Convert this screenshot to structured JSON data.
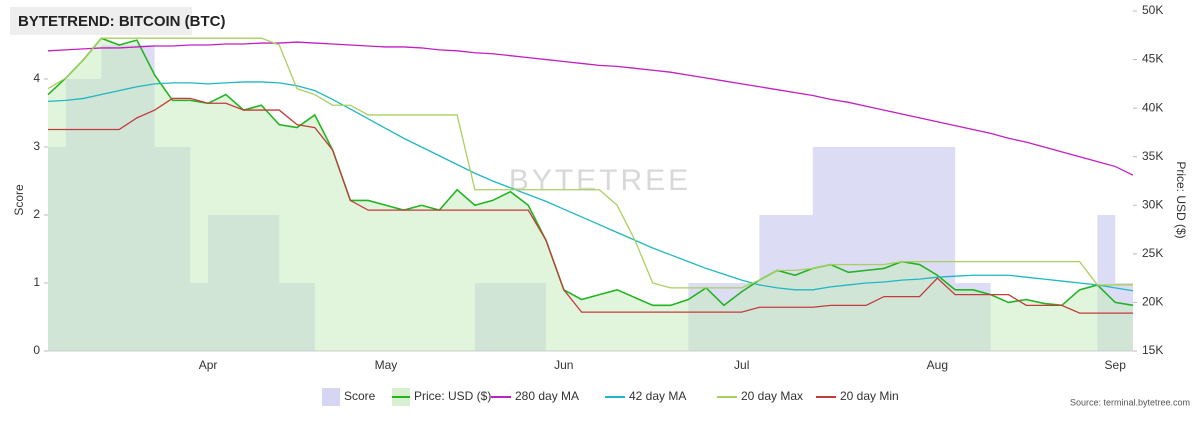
{
  "chart_data": {
    "type": "line",
    "title": "BYTETREND: BITCOIN (BTC)",
    "watermark": "BYTETREE",
    "source": "Source: terminal.bytetree.com",
    "ylabel": "Score",
    "y2label": "Price: USD ($)",
    "categories": [
      null,
      null,
      null,
      null,
      null,
      null,
      null,
      null,
      null,
      "Apr",
      null,
      null,
      null,
      null,
      null,
      null,
      null,
      null,
      null,
      "May",
      null,
      null,
      null,
      null,
      null,
      null,
      null,
      null,
      null,
      "Jun",
      null,
      null,
      null,
      null,
      null,
      null,
      null,
      null,
      null,
      "Jul",
      null,
      null,
      null,
      null,
      null,
      null,
      null,
      null,
      null,
      null,
      "Aug",
      null,
      null,
      null,
      null,
      null,
      null,
      null,
      null,
      null,
      "Sep",
      null
    ],
    "ylim": [
      0,
      5
    ],
    "yticks": [
      0,
      1,
      2,
      3,
      4
    ],
    "y2lim": [
      15000,
      50000
    ],
    "y2ticks": [
      {
        "value": 15000,
        "label": "15K"
      },
      {
        "value": 20000,
        "label": "20K"
      },
      {
        "value": 25000,
        "label": "25K"
      },
      {
        "value": 30000,
        "label": "30K"
      },
      {
        "value": 35000,
        "label": "35K"
      },
      {
        "value": 40000,
        "label": "40K"
      },
      {
        "value": 45000,
        "label": "45K"
      },
      {
        "value": 50000,
        "label": "50K"
      }
    ],
    "grid": false,
    "legend": "bottom",
    "series": [
      {
        "name": "Score",
        "color": "#d6d6f2",
        "axis": "y",
        "style": "area-step",
        "values": [
          3,
          4,
          4,
          4.5,
          4.5,
          4.5,
          3,
          3,
          1,
          2,
          2,
          2,
          2,
          1,
          1,
          0,
          0,
          0,
          0,
          0,
          0,
          0,
          0,
          0,
          1,
          1,
          1,
          1,
          0,
          0,
          0,
          0,
          0,
          0,
          0,
          0,
          1,
          1,
          1,
          1,
          2,
          2,
          2,
          3,
          3,
          3,
          3,
          3,
          3,
          3,
          3,
          1,
          1,
          0,
          0,
          0,
          0,
          0,
          0,
          2,
          1,
          1
        ]
      },
      {
        "name": "Price: USD ($)",
        "color": "#22b422",
        "axis": "y2",
        "style": "area-line",
        "values": [
          41400,
          43100,
          45000,
          47200,
          46500,
          47000,
          43400,
          40800,
          40800,
          40500,
          41400,
          39800,
          40300,
          38300,
          38000,
          39300,
          35700,
          30500,
          30500,
          30000,
          29500,
          30000,
          29500,
          31600,
          30000,
          30500,
          31400,
          30000,
          26400,
          21300,
          20300,
          20800,
          21300,
          20500,
          19700,
          19700,
          20300,
          21500,
          19700,
          21100,
          22300,
          23300,
          22800,
          23500,
          23900,
          23100,
          23300,
          23500,
          24200,
          23900,
          22800,
          21300,
          21300,
          20800,
          20000,
          20300,
          19900,
          19700,
          21300,
          21800,
          20000,
          19700
        ]
      },
      {
        "name": "280 day MA",
        "color": "#c21fc2",
        "axis": "y2",
        "style": "line",
        "values": [
          45900,
          46000,
          46100,
          46200,
          46200,
          46300,
          46400,
          46400,
          46500,
          46500,
          46600,
          46600,
          46700,
          46700,
          46800,
          46700,
          46600,
          46500,
          46400,
          46300,
          46300,
          46200,
          46000,
          45900,
          45700,
          45600,
          45400,
          45200,
          45000,
          44800,
          44600,
          44400,
          44300,
          44100,
          43900,
          43700,
          43400,
          43100,
          42800,
          42500,
          42200,
          41900,
          41600,
          41300,
          40900,
          40600,
          40200,
          39800,
          39400,
          39000,
          38600,
          38200,
          37800,
          37400,
          36900,
          36500,
          36000,
          35500,
          35000,
          34500,
          34000,
          33100
        ]
      },
      {
        "name": "42 day MA",
        "color": "#1fb8c0",
        "axis": "y2",
        "style": "line",
        "values": [
          40700,
          40800,
          41000,
          41400,
          41800,
          42200,
          42500,
          42600,
          42600,
          42500,
          42600,
          42700,
          42700,
          42600,
          42300,
          41800,
          40900,
          39900,
          38900,
          37900,
          36900,
          36000,
          35100,
          34200,
          33300,
          32500,
          31800,
          31100,
          30400,
          29600,
          28800,
          28000,
          27200,
          26400,
          25600,
          24900,
          24200,
          23500,
          22900,
          22300,
          21800,
          21500,
          21300,
          21300,
          21600,
          21800,
          22000,
          22100,
          22300,
          22400,
          22600,
          22700,
          22800,
          22800,
          22800,
          22600,
          22400,
          22200,
          22000,
          21800,
          21500,
          21200
        ]
      },
      {
        "name": "20 day Max",
        "color": "#a9d05e",
        "axis": "y2",
        "style": "line",
        "values": [
          42000,
          43100,
          45000,
          47200,
          47200,
          47200,
          47200,
          47200,
          47200,
          47200,
          47200,
          47200,
          47200,
          46500,
          42000,
          41400,
          40300,
          40300,
          39300,
          39300,
          39300,
          39300,
          39300,
          39300,
          31600,
          31600,
          31600,
          31600,
          31600,
          31600,
          31600,
          31600,
          30000,
          26400,
          22000,
          21500,
          21500,
          21500,
          21500,
          21500,
          22300,
          23300,
          23300,
          23500,
          23900,
          23900,
          23900,
          23900,
          24200,
          24200,
          24200,
          24200,
          24200,
          24200,
          24200,
          24200,
          24200,
          24200,
          24200,
          21800,
          21800,
          21800
        ]
      },
      {
        "name": "20 day Min",
        "color": "#c23c3c",
        "axis": "y2",
        "style": "line",
        "values": [
          37800,
          37800,
          37800,
          37800,
          37800,
          39000,
          39800,
          41000,
          41000,
          40500,
          40500,
          39800,
          39800,
          39800,
          38300,
          38000,
          35700,
          30500,
          29500,
          29500,
          29500,
          29500,
          29500,
          29500,
          29500,
          29500,
          29500,
          29500,
          26400,
          21300,
          19000,
          19000,
          19000,
          19000,
          19000,
          19000,
          19000,
          19000,
          19000,
          19000,
          19500,
          19500,
          19500,
          19500,
          19700,
          19700,
          19700,
          20600,
          20600,
          20600,
          22500,
          20800,
          20800,
          20800,
          20800,
          19700,
          19700,
          19700,
          18900,
          18900,
          18900,
          18900
        ]
      }
    ]
  }
}
